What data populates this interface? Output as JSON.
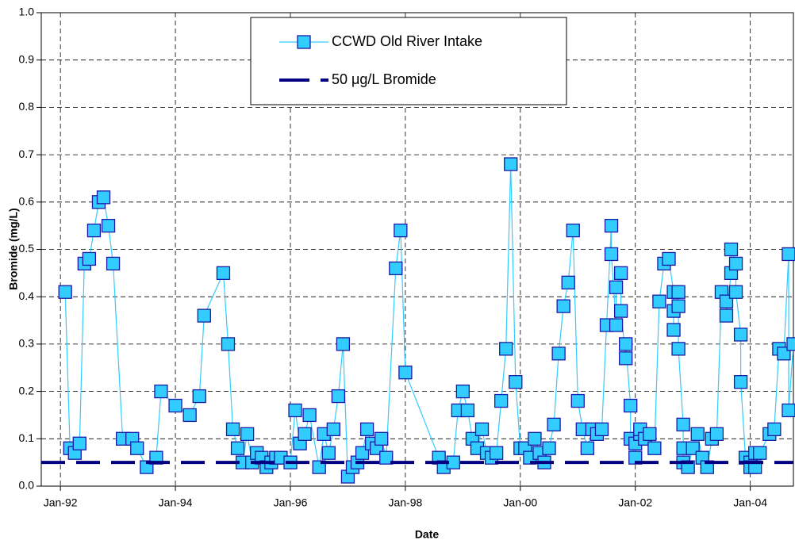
{
  "chart_data": {
    "type": "line",
    "ylabel": "Bromide (mg/L)",
    "xlabel": "Date",
    "xlim": [
      "1991-09",
      "2004-10"
    ],
    "xticks": [
      {
        "value": "1992-01",
        "label": "Jan-92"
      },
      {
        "value": "1994-01",
        "label": "Jan-94"
      },
      {
        "value": "1996-01",
        "label": "Jan-96"
      },
      {
        "value": "1998-01",
        "label": "Jan-98"
      },
      {
        "value": "2000-01",
        "label": "Jan-00"
      },
      {
        "value": "2002-01",
        "label": "Jan-02"
      },
      {
        "value": "2004-01",
        "label": "Jan-04"
      }
    ],
    "ylim": [
      0,
      1
    ],
    "yticks": [
      {
        "value": 0,
        "label": "0.0"
      },
      0.1,
      0.2,
      0.3,
      0.4,
      0.5,
      0.6,
      0.7,
      0.8,
      0.9,
      {
        "value": 1,
        "label": "1.0"
      }
    ],
    "grid": true,
    "legend": "top",
    "series": [
      {
        "name": "CCWD Old River Intake",
        "color": "#33ccff",
        "marker": "square",
        "x": [
          "1992-02",
          "1992-03",
          "1992-04",
          "1992-05",
          "1992-06",
          "1992-07",
          "1992-08",
          "1992-09",
          "1992-10",
          "1992-11",
          "1992-12",
          "1993-02",
          "1993-04",
          "1993-05",
          "1993-07",
          "1993-09",
          "1993-10",
          "1994-01",
          "1994-04",
          "1994-06",
          "1994-07",
          "1994-11",
          "1994-12",
          "1995-01",
          "1995-02",
          "1995-03",
          "1995-04",
          "1995-05",
          "1995-06",
          "1995-07",
          "1995-08",
          "1995-09",
          "1995-10",
          "1995-11",
          "1996-01",
          "1996-02",
          "1996-03",
          "1996-04",
          "1996-05",
          "1996-07",
          "1996-08",
          "1996-09",
          "1996-10",
          "1996-11",
          "1996-12",
          "1997-01",
          "1997-02",
          "1997-03",
          "1997-04",
          "1997-05",
          "1997-06",
          "1997-07",
          "1997-08",
          "1997-09",
          "1997-11",
          "1997-12",
          "1998-01",
          "1998-08",
          "1998-09",
          "1998-11",
          "1998-12",
          "1999-01",
          "1999-02",
          "1999-03",
          "1999-04",
          "1999-05",
          "1999-06",
          "1999-07",
          "1999-08",
          "1999-09",
          "1999-10",
          "1999-11",
          "1999-12",
          "2000-01",
          "2000-02",
          "2000-03",
          "2000-04",
          "2000-05",
          "2000-06",
          "2000-07",
          "2000-08",
          "2000-09",
          "2000-10",
          "2000-11",
          "2000-12",
          "2001-01",
          "2001-02",
          "2001-03",
          "2001-04",
          "2001-05",
          "2001-06",
          "2001-07",
          "2001-08",
          "2001-08",
          "2001-09",
          "2001-09",
          "2001-10",
          "2001-10",
          "2001-11",
          "2001-11",
          "2001-12",
          "2001-12",
          "2002-01",
          "2002-01",
          "2002-02",
          "2002-02",
          "2002-03",
          "2002-04",
          "2002-05",
          "2002-06",
          "2002-07",
          "2002-08",
          "2002-09",
          "2002-09",
          "2002-09",
          "2002-10",
          "2002-10",
          "2002-10",
          "2002-11",
          "2002-11",
          "2002-11",
          "2002-12",
          "2003-01",
          "2003-02",
          "2003-03",
          "2003-04",
          "2003-05",
          "2003-06",
          "2003-07",
          "2003-08",
          "2003-08",
          "2003-09",
          "2003-09",
          "2003-10",
          "2003-10",
          "2003-11",
          "2003-11",
          "2003-12",
          "2004-01",
          "2004-01",
          "2004-02",
          "2004-02",
          "2004-03",
          "2004-05",
          "2004-06",
          "2004-07",
          "2004-08",
          "2004-09",
          "2004-09",
          "2004-10"
        ],
        "values": [
          0.41,
          0.08,
          0.07,
          0.09,
          0.47,
          0.48,
          0.54,
          0.6,
          0.61,
          0.55,
          0.47,
          0.1,
          0.1,
          0.08,
          0.04,
          0.06,
          0.2,
          0.17,
          0.15,
          0.19,
          0.36,
          0.45,
          0.3,
          0.12,
          0.08,
          0.05,
          0.11,
          0.05,
          0.07,
          0.06,
          0.04,
          0.05,
          0.06,
          0.06,
          0.05,
          0.16,
          0.09,
          0.11,
          0.15,
          0.04,
          0.11,
          0.07,
          0.12,
          0.19,
          0.3,
          0.02,
          0.04,
          0.05,
          0.07,
          0.12,
          0.09,
          0.08,
          0.1,
          0.06,
          0.46,
          0.54,
          0.24,
          0.06,
          0.04,
          0.05,
          0.16,
          0.2,
          0.16,
          0.1,
          0.08,
          0.12,
          0.07,
          0.06,
          0.07,
          0.18,
          0.29,
          0.68,
          0.22,
          0.08,
          0.08,
          0.06,
          0.1,
          0.07,
          0.05,
          0.08,
          0.13,
          0.28,
          0.38,
          0.43,
          0.54,
          0.18,
          0.12,
          0.08,
          0.12,
          0.11,
          0.12,
          0.34,
          0.55,
          0.49,
          0.34,
          0.42,
          0.45,
          0.37,
          0.27,
          0.3,
          0.17,
          0.1,
          0.06,
          0.09,
          0.11,
          0.12,
          0.1,
          0.11,
          0.08,
          0.39,
          0.47,
          0.48,
          0.41,
          0.33,
          0.37,
          0.41,
          0.38,
          0.29,
          0.13,
          0.08,
          0.05,
          0.04,
          0.08,
          0.11,
          0.06,
          0.04,
          0.1,
          0.11,
          0.41,
          0.39,
          0.36,
          0.45,
          0.5,
          0.47,
          0.41,
          0.32,
          0.22,
          0.06,
          0.05,
          0.04,
          0.07,
          0.04,
          0.07,
          0.11,
          0.12,
          0.29,
          0.28,
          0.49,
          0.16,
          0.3
        ]
      },
      {
        "name": "50 μg/L Bromide",
        "color": "#000080",
        "dashed": true,
        "x": [
          "1991-09",
          "2004-10"
        ],
        "values": [
          0.05,
          0.05
        ]
      }
    ]
  }
}
